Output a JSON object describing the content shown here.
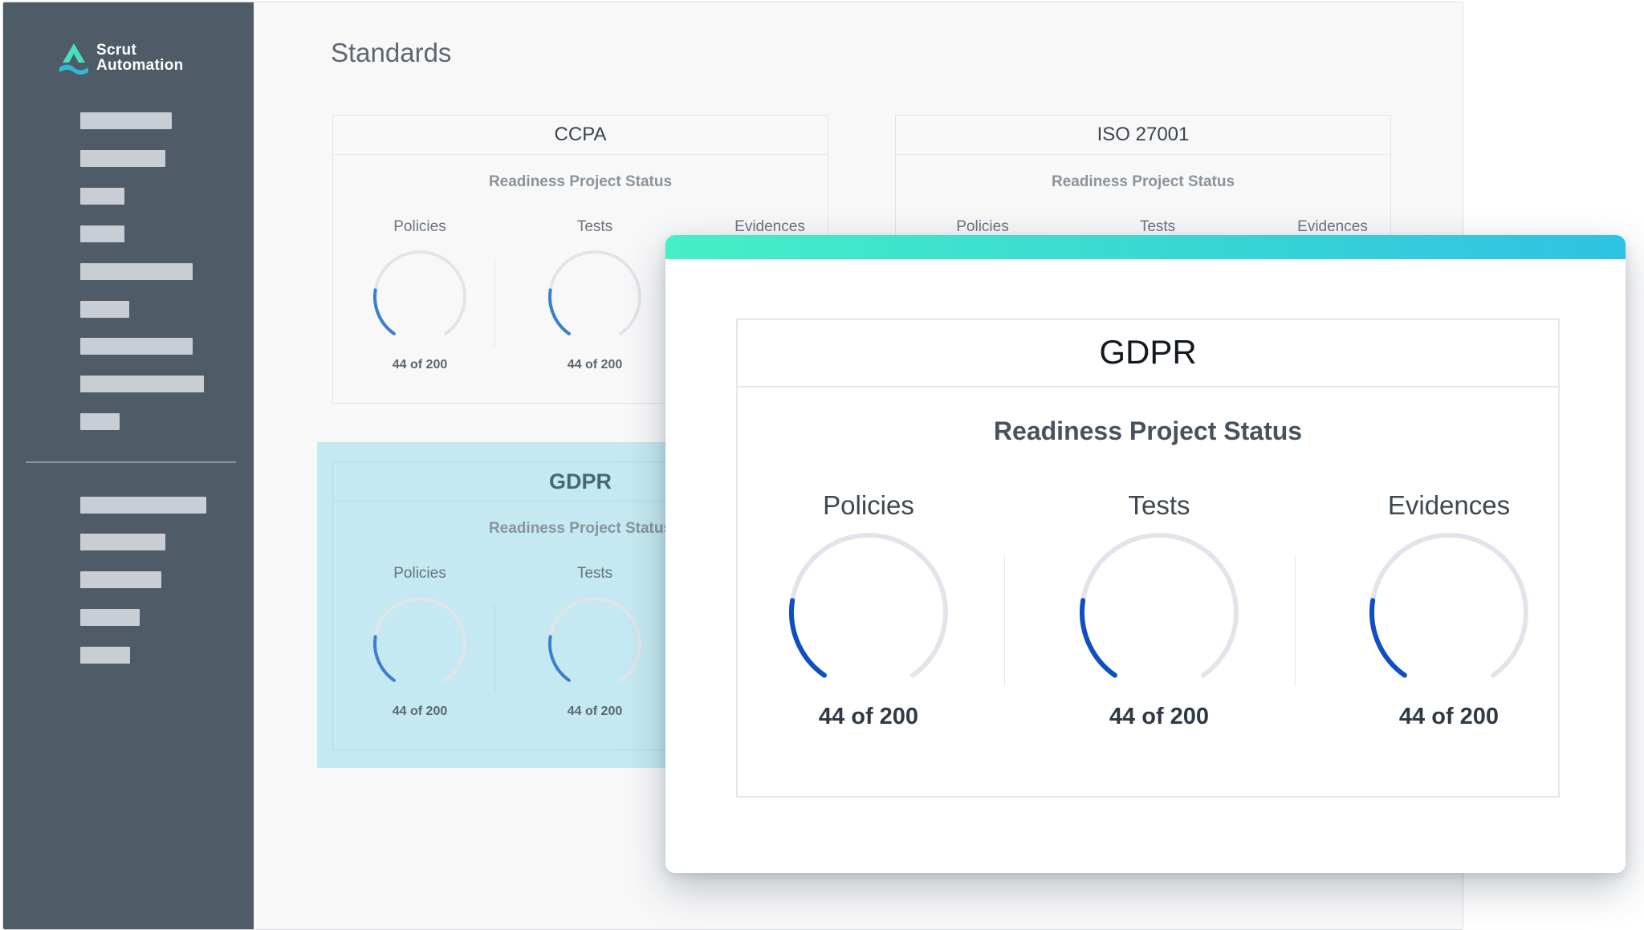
{
  "app": {
    "logo_line1": "Scrut",
    "logo_line2": "Automation",
    "page_title": "Standards"
  },
  "colors": {
    "sidebar": "#4f5b66",
    "gauge_track": "#e1e5ea",
    "gauge_fill": "#3b7fd0",
    "modal_gauge_fill": "#0f4fc2",
    "highlight": "#c5e9f2",
    "accent_gradient_start": "#46efc7",
    "accent_gradient_end": "#2fc2e4"
  },
  "cards": [
    {
      "title": "CCPA",
      "subtitle": "Readiness Project Status",
      "metrics": [
        {
          "label": "Policies",
          "value": "44 of 200",
          "done": 44,
          "total": 200
        },
        {
          "label": "Tests",
          "value": "44 of 200",
          "done": 44,
          "total": 200
        },
        {
          "label": "Evidences"
        }
      ]
    },
    {
      "title": "ISO 27001",
      "subtitle": "Readiness Project Status",
      "metrics": [
        {
          "label": "Policies"
        },
        {
          "label": "Tests"
        },
        {
          "label": "Evidences"
        }
      ]
    },
    {
      "title": "GDPR",
      "subtitle": "Readiness Project Status",
      "metrics": [
        {
          "label": "Policies",
          "value": "44 of 200",
          "done": 44,
          "total": 200
        },
        {
          "label": "Tests",
          "value": "44 of 200",
          "done": 44,
          "total": 200
        }
      ]
    }
  ],
  "modal": {
    "title": "GDPR",
    "subtitle": "Readiness Project Status",
    "metrics": [
      {
        "label": "Policies",
        "value": "44 of 200",
        "done": 44,
        "total": 200
      },
      {
        "label": "Tests",
        "value": "44 of 200",
        "done": 44,
        "total": 200
      },
      {
        "label": "Evidences",
        "value": "44 of 200",
        "done": 44,
        "total": 200
      }
    ]
  }
}
